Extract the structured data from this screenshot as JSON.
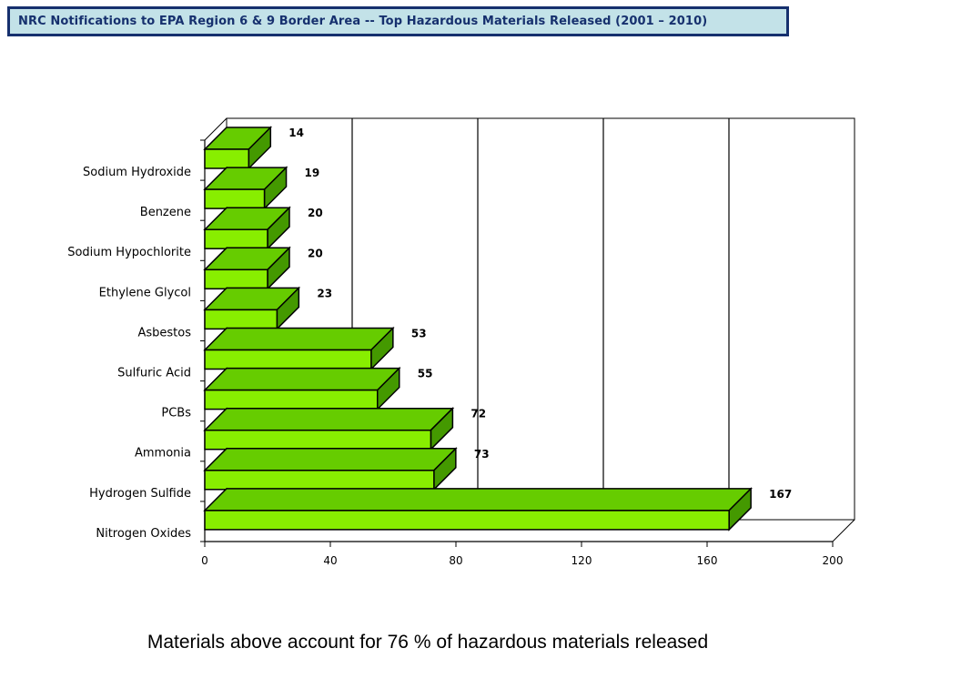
{
  "header": {
    "title": "NRC Notifications to EPA Region 6 & 9 Border Area -- Top Hazardous Materials Released  (2001 – 2010)"
  },
  "colors": {
    "bar_front": "#88ee00",
    "bar_top": "#66cc00",
    "bar_side": "#449900",
    "wall": "#777777",
    "title_bg": "#c3e2e8",
    "title_border": "#16306e"
  },
  "chart_data": {
    "type": "bar",
    "orientation": "horizontal",
    "style": "3d",
    "categories": [
      "Sodium Hydroxide",
      "Benzene",
      "Sodium Hypochlorite",
      "Ethylene Glycol",
      "Asbestos",
      "Sulfuric Acid",
      "PCBs",
      "Ammonia",
      "Hydrogen Sulfide",
      "Nitrogen Oxides"
    ],
    "values": [
      14,
      19,
      20,
      20,
      23,
      53,
      55,
      72,
      73,
      167
    ],
    "xlim": [
      0,
      200
    ],
    "xticks": [
      0,
      40,
      80,
      120,
      160,
      200
    ],
    "grid": "vertical",
    "legend": "none"
  },
  "footnote": "Materials above account for  76 % of hazardous materials released"
}
